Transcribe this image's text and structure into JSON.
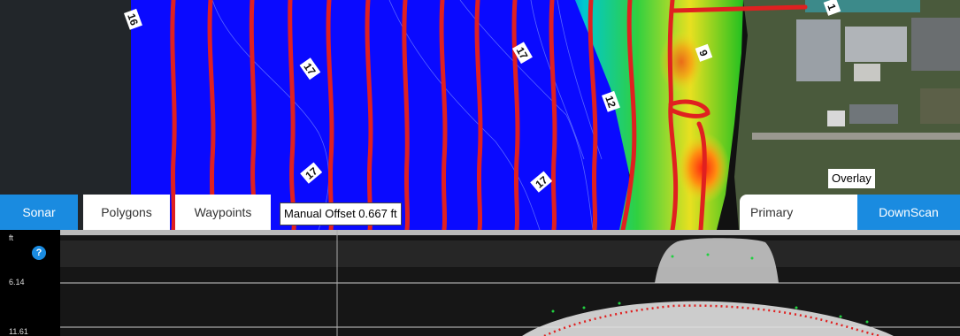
{
  "tabs": [
    {
      "label": "Sonar",
      "active": true
    },
    {
      "label": "Polygons",
      "active": false
    },
    {
      "label": "Waypoints",
      "active": false
    }
  ],
  "manual_offset": "Manual Offset 0.667 ft",
  "overlay_label": "Overlay",
  "view_toggle": {
    "primary_label": "Primary",
    "downscan_label": "DownScan",
    "active": "DownScan"
  },
  "contour_labels": [
    "16",
    "17",
    "17",
    "17",
    "17",
    "12",
    "9",
    "1"
  ],
  "sonar": {
    "unit": "ft",
    "help_icon": "?",
    "depth_labels": [
      "6.14",
      "11.61"
    ]
  },
  "colors": {
    "accent": "#1a8be0",
    "water": "#0a0aff",
    "track": "#e02020"
  }
}
